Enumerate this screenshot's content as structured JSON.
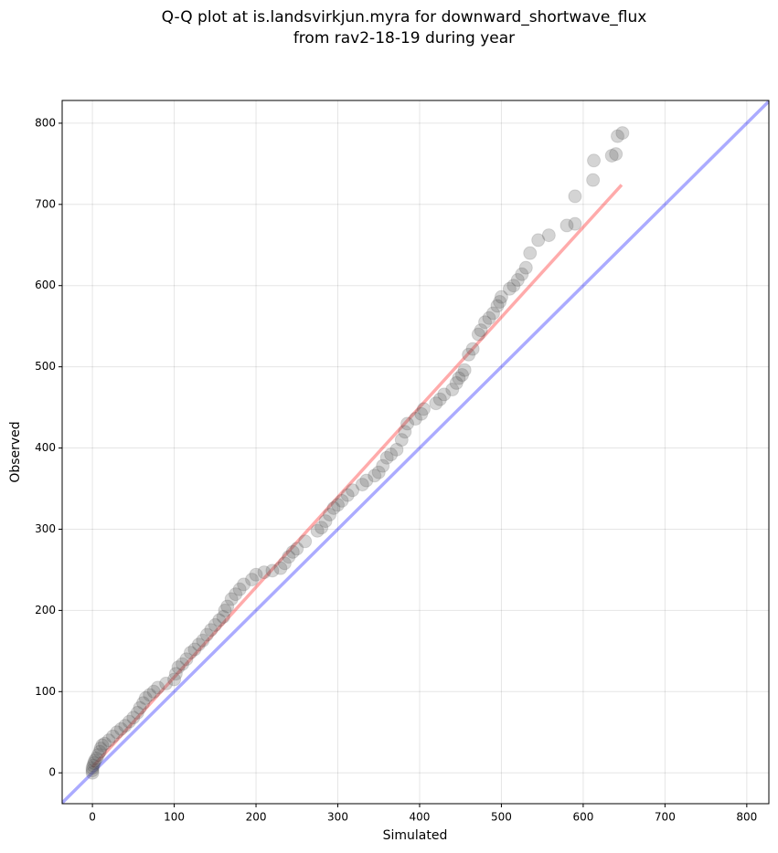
{
  "chart_data": {
    "type": "scatter",
    "title": [
      "Q-Q plot at is.landsvirkjun.myra for downward_shortwave_flux",
      "from rav2-18-19 during year"
    ],
    "xlabel": "Simulated",
    "ylabel": "Observed",
    "xlim": [
      -37,
      827
    ],
    "ylim": [
      -38,
      828
    ],
    "xticks": [
      0,
      100,
      200,
      300,
      400,
      500,
      600,
      700,
      800
    ],
    "yticks": [
      0,
      100,
      200,
      300,
      400,
      500,
      600,
      700,
      800
    ],
    "grid": true,
    "color": "#555555",
    "x": [
      0,
      0,
      0,
      1,
      2,
      3,
      5,
      7,
      9,
      10,
      12,
      15,
      20,
      25,
      30,
      35,
      40,
      45,
      50,
      55,
      58,
      62,
      65,
      70,
      75,
      80,
      90,
      100,
      102,
      105,
      110,
      115,
      120,
      125,
      130,
      135,
      140,
      145,
      150,
      155,
      160,
      162,
      165,
      170,
      175,
      180,
      185,
      195,
      200,
      210,
      220,
      230,
      235,
      240,
      245,
      250,
      260,
      275,
      280,
      285,
      290,
      295,
      300,
      305,
      312,
      318,
      330,
      335,
      345,
      350,
      355,
      360,
      365,
      372,
      378,
      382,
      385,
      395,
      402,
      405,
      420,
      425,
      430,
      440,
      445,
      448,
      452,
      455,
      460,
      465,
      472,
      475,
      480,
      485,
      490,
      495,
      498,
      500,
      510,
      515,
      520,
      525,
      530,
      535,
      545,
      558,
      580,
      590,
      590,
      612,
      613,
      635,
      640,
      642,
      648
    ],
    "y": [
      0,
      3,
      6,
      9,
      12,
      15,
      18,
      22,
      26,
      30,
      34,
      36,
      40,
      45,
      50,
      54,
      58,
      63,
      68,
      74,
      80,
      86,
      92,
      96,
      100,
      105,
      110,
      115,
      122,
      130,
      134,
      140,
      148,
      152,
      158,
      163,
      170,
      176,
      182,
      188,
      192,
      200,
      205,
      214,
      220,
      226,
      232,
      238,
      244,
      247,
      249,
      252,
      258,
      266,
      272,
      276,
      285,
      298,
      302,
      310,
      318,
      326,
      330,
      335,
      342,
      348,
      355,
      360,
      366,
      370,
      378,
      388,
      392,
      398,
      410,
      420,
      430,
      436,
      442,
      448,
      455,
      460,
      466,
      472,
      480,
      486,
      490,
      496,
      515,
      522,
      540,
      545,
      555,
      560,
      566,
      575,
      580,
      586,
      596,
      600,
      607,
      614,
      622,
      640,
      656,
      662,
      674,
      676,
      710,
      730,
      754,
      760,
      762,
      784,
      788
    ],
    "lines": [
      {
        "color": "#0000ff",
        "x": [
          -37,
          827
        ],
        "y": [
          -37,
          827
        ]
      },
      {
        "color": "#ff0000",
        "x": [
          0,
          647
        ],
        "y": [
          7,
          724
        ]
      }
    ]
  }
}
